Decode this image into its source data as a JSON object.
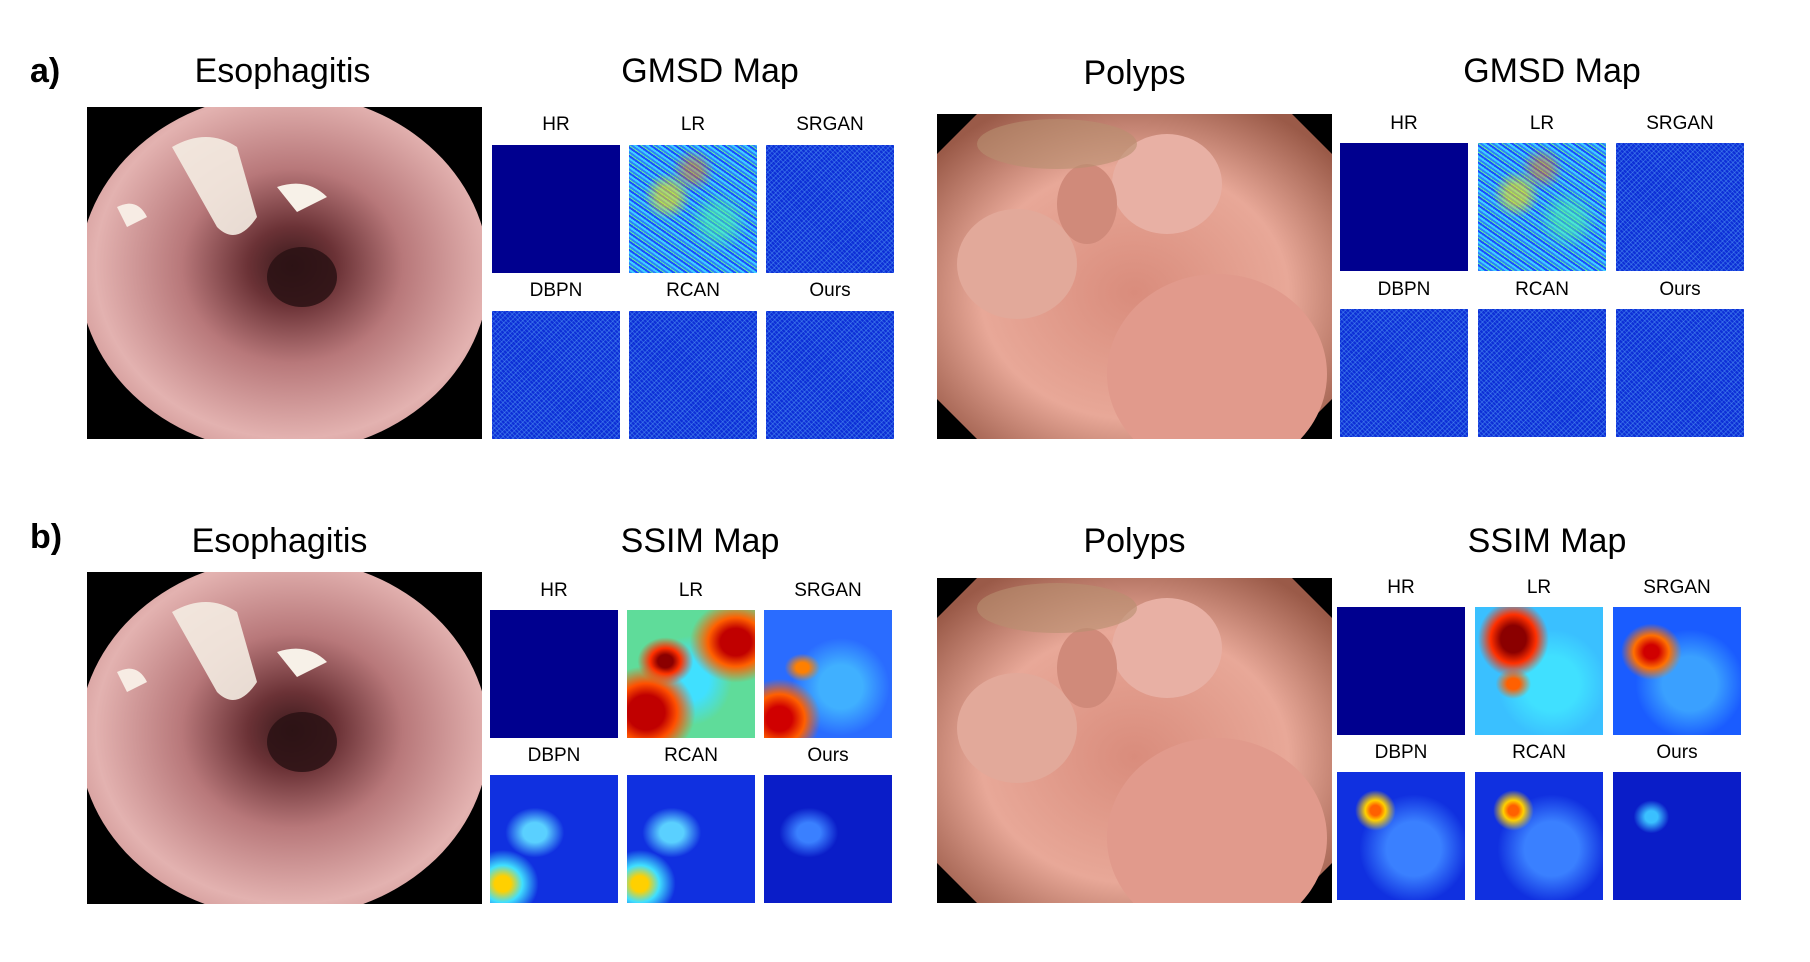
{
  "rows": [
    {
      "label": "a)",
      "groups": [
        {
          "image_title": "Esophagitis",
          "map_title": "GMSD Map",
          "method_labels": [
            "HR",
            "LR",
            "SRGAN",
            "DBPN",
            "RCAN",
            "Ours"
          ]
        },
        {
          "image_title": "Polyps",
          "map_title": "GMSD Map",
          "method_labels": [
            "HR",
            "LR",
            "SRGAN",
            "DBPN",
            "RCAN",
            "Ours"
          ]
        }
      ]
    },
    {
      "label": "b)",
      "groups": [
        {
          "image_title": "Esophagitis",
          "map_title": "SSIM Map",
          "method_labels": [
            "HR",
            "LR",
            "SRGAN",
            "DBPN",
            "RCAN",
            "Ours"
          ]
        },
        {
          "image_title": "Polyps",
          "map_title": "SSIM Map",
          "method_labels": [
            "HR",
            "LR",
            "SRGAN",
            "DBPN",
            "RCAN",
            "Ours"
          ]
        }
      ]
    }
  ],
  "colors": {
    "map_base": "#00008f",
    "map_mid": "#1a4dff",
    "map_hot": "#ff2a00",
    "map_warm": "#ffd000",
    "map_cyan": "#33d6ff",
    "tissue": "#d9a3a0",
    "tissue_light": "#f0cfc8",
    "tissue_dark": "#5a2a2a"
  }
}
